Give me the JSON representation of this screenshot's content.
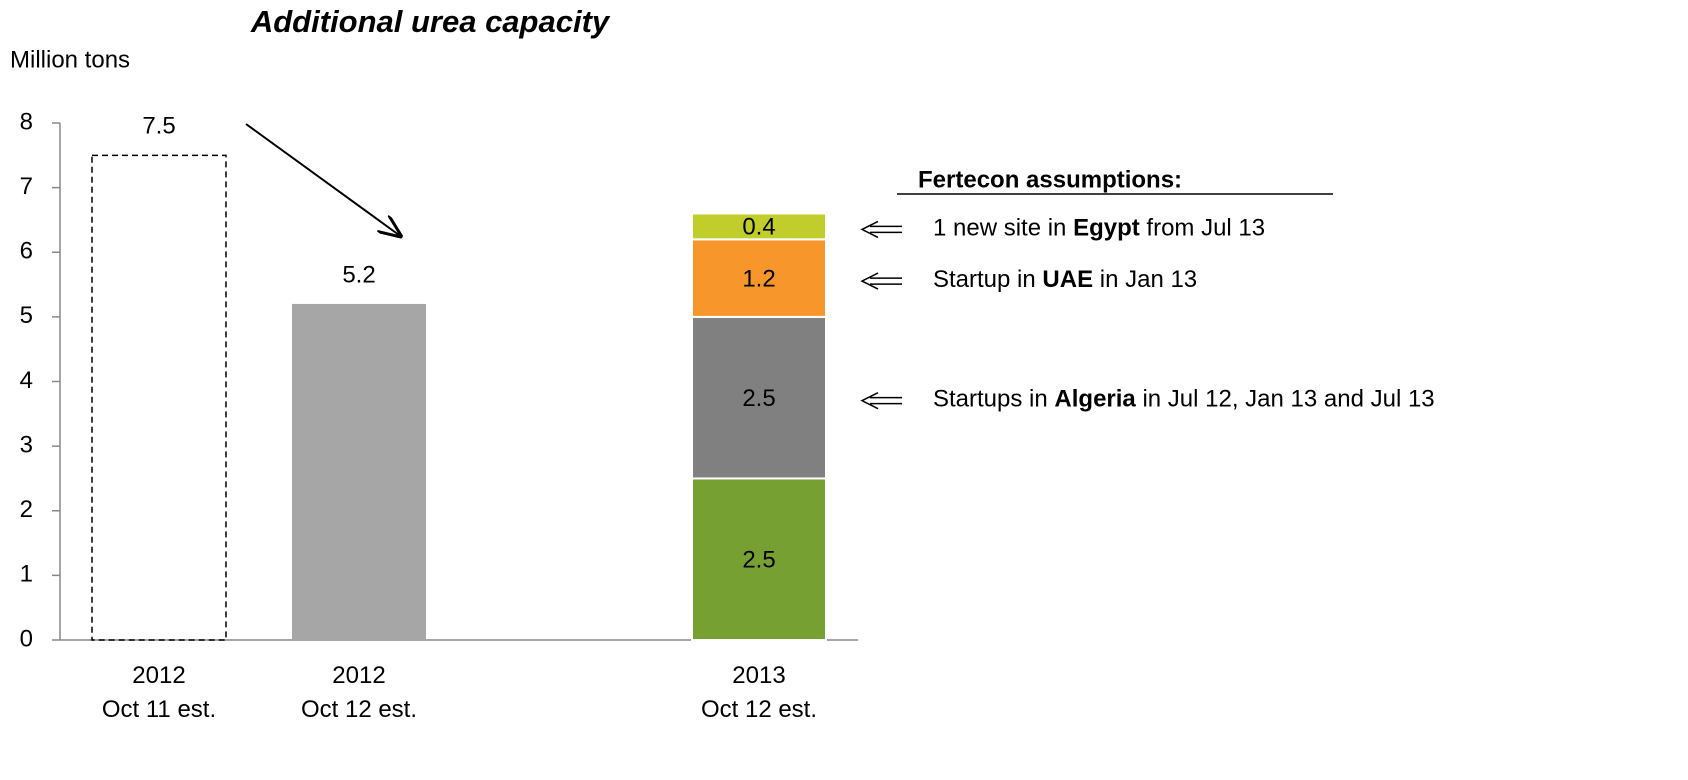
{
  "chart_data": {
    "type": "bar",
    "title": "Additional urea capacity",
    "y_label": "Million tons",
    "categories": [
      [
        "2012",
        "Oct 11 est."
      ],
      [
        "2012",
        "Oct 12 est."
      ],
      [
        "2013",
        "Oct 12 est."
      ]
    ],
    "stacked": true,
    "series": [
      {
        "color": "none",
        "style": "dashed",
        "values": [
          7.5,
          null,
          null
        ]
      },
      {
        "color": "#a6a6a6",
        "values": [
          null,
          5.2,
          null
        ]
      },
      {
        "color": "#77a033",
        "values": [
          null,
          null,
          2.5
        ]
      },
      {
        "color": "#808080",
        "values": [
          null,
          null,
          2.5
        ],
        "note": [
          {
            "text": "Startups in "
          },
          {
            "text": "Algeria",
            "bold": true
          },
          {
            "text": " in Jul 12, Jan 13 and Jul 13"
          }
        ]
      },
      {
        "color": "#f7962b",
        "values": [
          null,
          null,
          1.2
        ],
        "note": [
          {
            "text": "Startup in "
          },
          {
            "text": "UAE",
            "bold": true
          },
          {
            "text": " in Jan 13"
          }
        ]
      },
      {
        "color": "#c0cd2a",
        "values": [
          null,
          null,
          0.4
        ],
        "note": [
          {
            "text": "1 new site in "
          },
          {
            "text": "Egypt",
            "bold": true
          },
          {
            "text": " from Jul 13"
          }
        ]
      }
    ],
    "notes_title": "Fertecon assumptions:",
    "ylim": [
      0,
      8
    ],
    "yticks": [
      0,
      1,
      2,
      3,
      4,
      5,
      6,
      7,
      8
    ],
    "data_labels": true
  }
}
